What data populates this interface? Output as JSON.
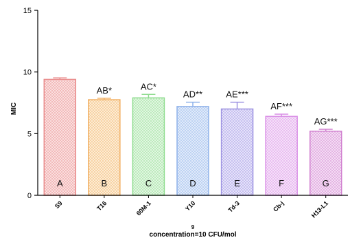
{
  "chart_data": {
    "type": "bar",
    "ylabel": "MIC",
    "xlabel_superscript": "9",
    "xlabel": "concentration=10 CFU/mol",
    "ylim": [
      0,
      15
    ],
    "yticks": [
      0,
      5,
      10,
      15
    ],
    "categories": [
      "S9",
      "T16",
      "60M-1",
      "Y10",
      "Td-3",
      "Cb-j",
      "H13-L1"
    ],
    "values": [
      9.4,
      7.75,
      7.9,
      7.2,
      7.0,
      6.4,
      5.2
    ],
    "errors": [
      0.12,
      0.12,
      0.28,
      0.35,
      0.55,
      0.18,
      0.15
    ],
    "significance_labels": [
      "",
      "AB*",
      "AC*",
      "AD**",
      "AE***",
      "AF***",
      "AG***"
    ],
    "bar_letters": [
      "A",
      "B",
      "C",
      "D",
      "E",
      "F",
      "G"
    ],
    "colors": [
      "#e98b8b",
      "#f2b064",
      "#8fdc8f",
      "#8fb2ea",
      "#9d93e2",
      "#d98ee6",
      "#d07fcf"
    ],
    "fills": [
      "#fbe4e4",
      "#fdf0dc",
      "#e6f8e6",
      "#e6eefb",
      "#ebe8fb",
      "#f7e7fa",
      "#f6e3f6"
    ]
  }
}
